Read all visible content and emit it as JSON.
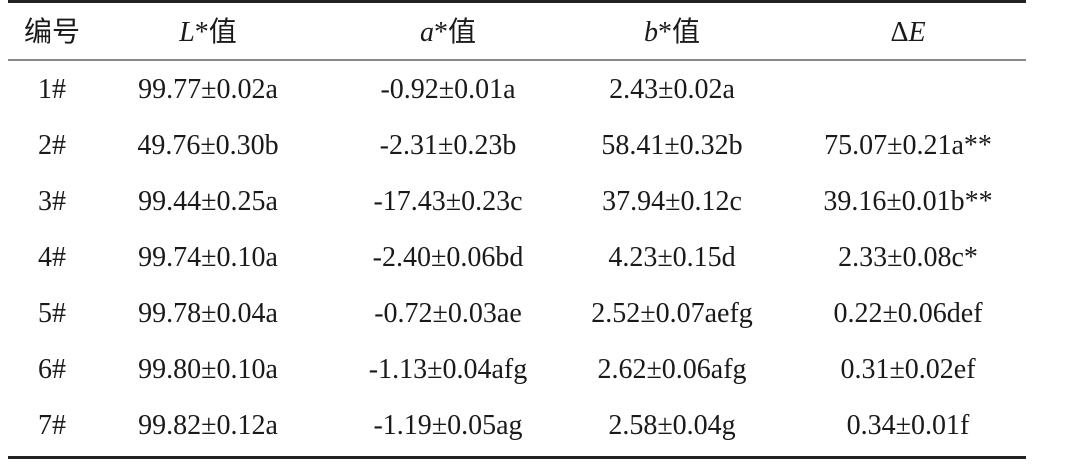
{
  "table": {
    "headers": [
      {
        "italic": "",
        "text": "编号"
      },
      {
        "italic": "L",
        "text": "*值"
      },
      {
        "italic": "a",
        "text": "*值"
      },
      {
        "italic": "b",
        "text": "*值"
      },
      {
        "italic": "E",
        "prefix": "Δ",
        "text": ""
      }
    ],
    "rows": [
      [
        "1#",
        "99.77±0.02a",
        "-0.92±0.01a",
        "2.43±0.02a",
        ""
      ],
      [
        "2#",
        "49.76±0.30b",
        "-2.31±0.23b",
        "58.41±0.32b",
        "75.07±0.21a**"
      ],
      [
        "3#",
        "99.44±0.25a",
        "-17.43±0.23c",
        "37.94±0.12c",
        "39.16±0.01b**"
      ],
      [
        "4#",
        "99.74±0.10a",
        "-2.40±0.06bd",
        "4.23±0.15d",
        "2.33±0.08c*"
      ],
      [
        "5#",
        "99.78±0.04a",
        "-0.72±0.03ae",
        "2.52±0.07aefg",
        "0.22±0.06def"
      ],
      [
        "6#",
        "99.80±0.10a",
        "-1.13±0.04afg",
        "2.62±0.06afg",
        "0.31±0.02ef"
      ],
      [
        "7#",
        "99.82±0.12a",
        "-1.19±0.05ag",
        "2.58±0.04g",
        "0.34±0.01f"
      ]
    ]
  }
}
